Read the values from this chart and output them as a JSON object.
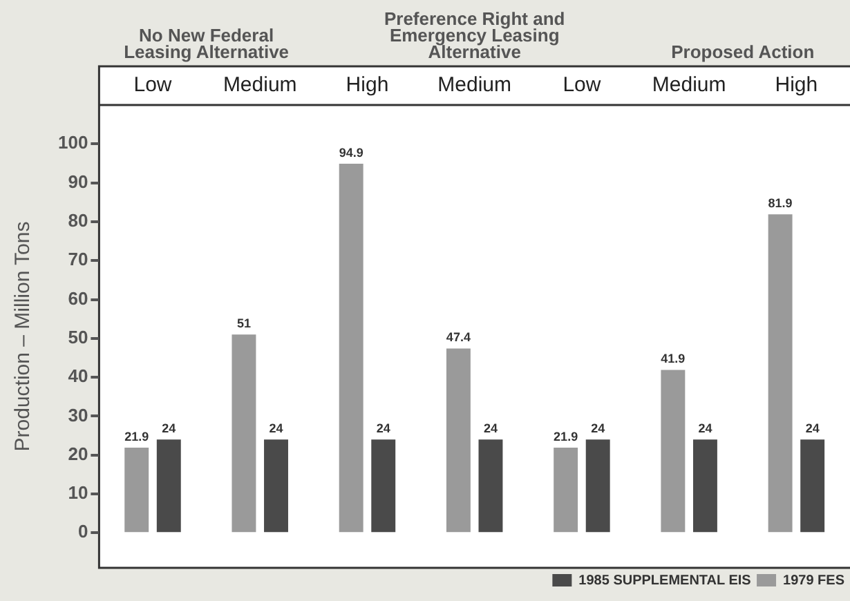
{
  "chart_data": {
    "type": "bar",
    "categories": [
      "Low",
      "Medium",
      "High",
      "Medium",
      "Low",
      "Medium",
      "High"
    ],
    "series": [
      {
        "name": "1979 FES",
        "color": "#9a9a9a",
        "values": [
          21.9,
          51,
          94.9,
          47.4,
          21.9,
          41.9,
          81.9
        ]
      },
      {
        "name": "1985 SUPPLEMENTAL EIS",
        "color": "#4a4a4a",
        "values": [
          24,
          24,
          24,
          24,
          24,
          24,
          24
        ]
      }
    ],
    "ylabel": "Production – Million Tons",
    "ylim": [
      -9,
      110
    ],
    "yticks": [
      0,
      10,
      20,
      30,
      40,
      50,
      60,
      70,
      80,
      90,
      100
    ],
    "annotations": [
      "No New Federal Leasing Alternative",
      "Preference Right and Emergency Leasing Alternative",
      "Proposed Action"
    ],
    "data_labels": true,
    "grid": false,
    "legend": "bottom right"
  }
}
